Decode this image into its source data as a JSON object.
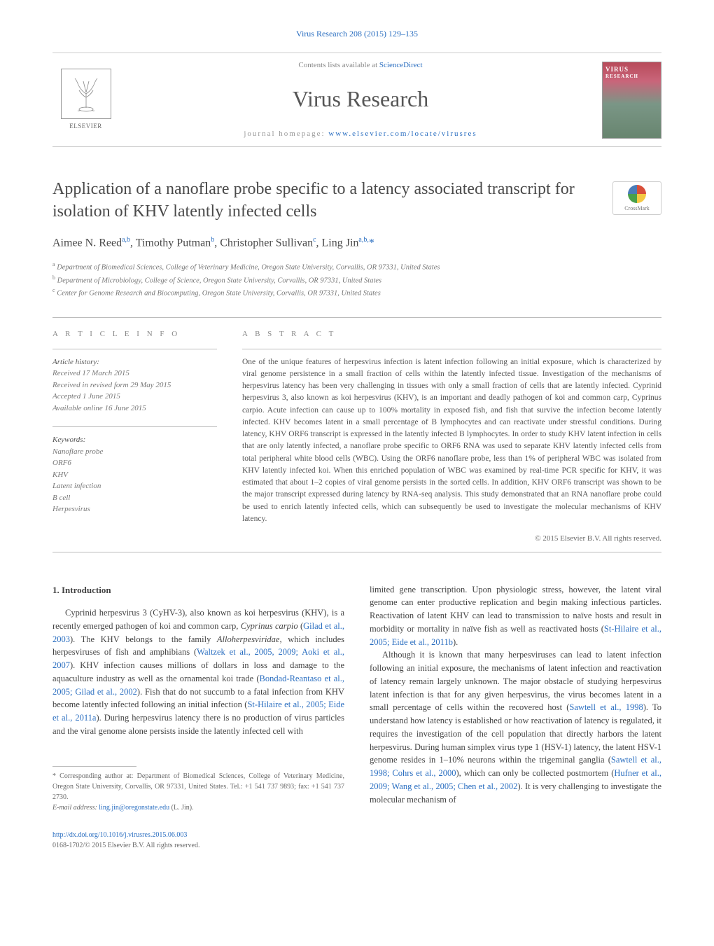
{
  "top_citation": {
    "text": "Virus Research 208 (2015) 129–135",
    "color": "#2a6ec0"
  },
  "publisher_bar": {
    "elsevier_label": "ELSEVIER",
    "contents_prefix": "Contents lists available at ",
    "contents_site": "ScienceDirect",
    "journal_title": "Virus Research",
    "homepage_prefix": "journal homepage: ",
    "homepage_url": "www.elsevier.com/locate/virusres",
    "cover_title": "VIRUS",
    "cover_sub": "RESEARCH"
  },
  "crossmark_label": "CrossMark",
  "article": {
    "title": "Application of a nanoflare probe specific to a latency associated transcript for isolation of KHV latently infected cells",
    "authors_html": "Aimee N. Reed<sup>a,b</sup>, Timothy Putman<sup>b</sup>, Christopher Sullivan<sup>c</sup>, Ling Jin<sup>a,b,</sup><span class='corr'>*</span>",
    "affiliations": [
      "a Department of Biomedical Sciences, College of Veterinary Medicine, Oregon State University, Corvallis, OR 97331, United States",
      "b Department of Microbiology, College of Science, Oregon State University, Corvallis, OR 97331, United States",
      "c Center for Genome Research and Biocomputing, Oregon State University, Corvallis, OR 97331, United States"
    ]
  },
  "article_info": {
    "heading": "a r t i c l e   i n f o",
    "history_label": "Article history:",
    "history": [
      "Received 17 March 2015",
      "Received in revised form 29 May 2015",
      "Accepted 1 June 2015",
      "Available online 16 June 2015"
    ],
    "keywords_label": "Keywords:",
    "keywords": [
      "Nanoflare probe",
      "ORF6",
      "KHV",
      "Latent infection",
      "B cell",
      "Herpesvirus"
    ]
  },
  "abstract": {
    "heading": "a b s t r a c t",
    "text": "One of the unique features of herpesvirus infection is latent infection following an initial exposure, which is characterized by viral genome persistence in a small fraction of cells within the latently infected tissue. Investigation of the mechanisms of herpesvirus latency has been very challenging in tissues with only a small fraction of cells that are latently infected. Cyprinid herpesvirus 3, also known as koi herpesvirus (KHV), is an important and deadly pathogen of koi and common carp, Cyprinus carpio. Acute infection can cause up to 100% mortality in exposed fish, and fish that survive the infection become latently infected. KHV becomes latent in a small percentage of B lymphocytes and can reactivate under stressful conditions. During latency, KHV ORF6 transcript is expressed in the latently infected B lymphocytes. In order to study KHV latent infection in cells that are only latently infected, a nanoflare probe specific to ORF6 RNA was used to separate KHV latently infected cells from total peripheral white blood cells (WBC). Using the ORF6 nanoflare probe, less than 1% of peripheral WBC was isolated from KHV latently infected koi. When this enriched population of WBC was examined by real-time PCR specific for KHV, it was estimated that about 1–2 copies of viral genome persists in the sorted cells. In addition, KHV ORF6 transcript was shown to be the major transcript expressed during latency by RNA-seq analysis. This study demonstrated that an RNA nanoflare probe could be used to enrich latently infected cells, which can subsequently be used to investigate the molecular mechanisms of KHV latency.",
    "copyright": "© 2015 Elsevier B.V. All rights reserved."
  },
  "body": {
    "section_number": "1.",
    "section_title": "Introduction",
    "col1_p1": "Cyprinid herpesvirus 3 (CyHV-3), also known as koi herpesvirus (KHV), is a recently emerged pathogen of koi and common carp, Cyprinus carpio (Gilad et al., 2003). The KHV belongs to the family Alloherpesviridae, which includes herpesviruses of fish and amphibians (Waltzek et al., 2005, 2009; Aoki et al., 2007). KHV infection causes millions of dollars in loss and damage to the aquaculture industry as well as the ornamental koi trade (Bondad-Reantaso et al., 2005; Gilad et al., 2002). Fish that do not succumb to a fatal infection from KHV become latently infected following an initial infection (St-Hilaire et al., 2005; Eide et al., 2011a). During herpesvirus latency there is no production of virus particles and the viral genome alone persists inside the latently infected cell with",
    "col2_p1": "limited gene transcription. Upon physiologic stress, however, the latent viral genome can enter productive replication and begin making infectious particles. Reactivation of latent KHV can lead to transmission to naïve hosts and result in morbidity or mortality in naïve fish as well as reactivated hosts (St-Hilaire et al., 2005; Eide et al., 2011b).",
    "col2_p2": "Although it is known that many herpesviruses can lead to latent infection following an initial exposure, the mechanisms of latent infection and reactivation of latency remain largely unknown. The major obstacle of studying herpesvirus latent infection is that for any given herpesvirus, the virus becomes latent in a small percentage of cells within the recovered host (Sawtell et al., 1998). To understand how latency is established or how reactivation of latency is regulated, it requires the investigation of the cell population that directly harbors the latent herpesvirus. During human simplex virus type 1 (HSV-1) latency, the latent HSV-1 genome resides in 1–10% neurons within the trigeminal ganglia (Sawtell et al., 1998; Cohrs et al., 2000), which can only be collected postmortem (Hufner et al., 2009; Wang et al., 2005; Chen et al., 2002). It is very challenging to investigate the molecular mechanism of"
  },
  "footnotes": {
    "corresponding": "* Corresponding author at: Department of Biomedical Sciences, College of Veterinary Medicine, Oregon State University, Corvallis, OR 97331, United States. Tel.: +1 541 737 9893; fax: +1 541 737 2730.",
    "email_label": "E-mail address: ",
    "email": "ling.jin@oregonstate.edu",
    "email_suffix": " (L. Jin)."
  },
  "bottom": {
    "doi": "http://dx.doi.org/10.1016/j.virusres.2015.06.003",
    "issn_line": "0168-1702/© 2015 Elsevier B.V. All rights reserved."
  },
  "colors": {
    "link": "#2a6ec0",
    "text": "#444444",
    "muted": "#888888",
    "border": "#bbbbbb"
  }
}
